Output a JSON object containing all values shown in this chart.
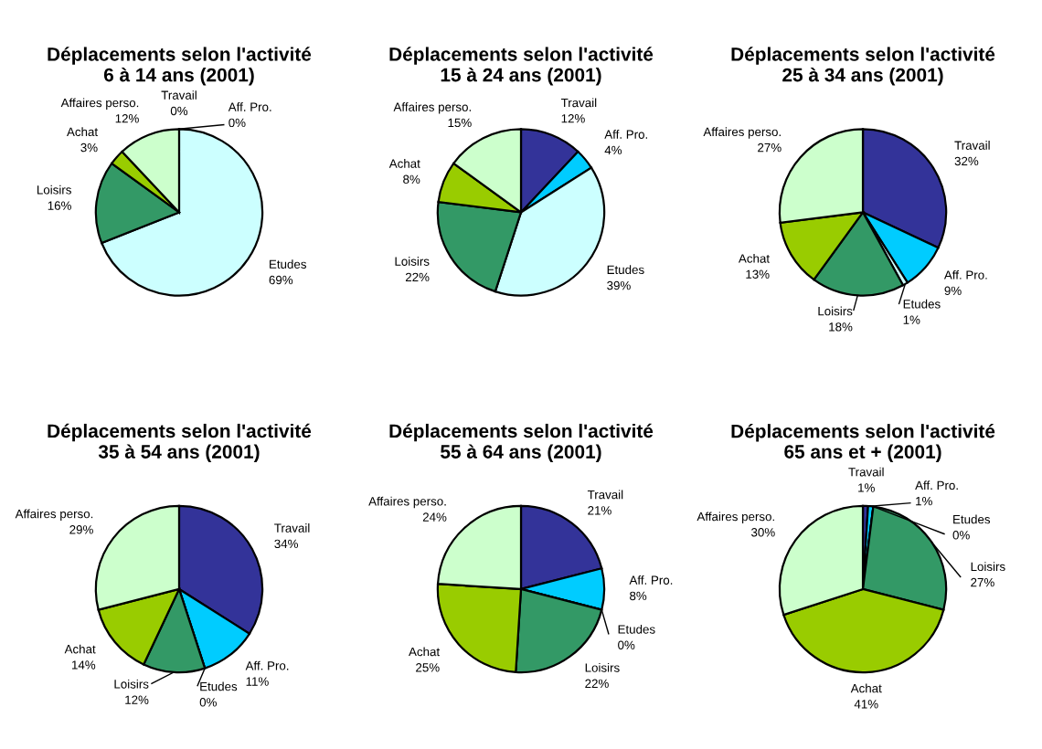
{
  "chart_data": [
    {
      "type": "pie",
      "title": "Déplacements selon l'activité\n6 à 14 ans (2001)",
      "categories": [
        "Travail",
        "Aff. Pro.",
        "Etudes",
        "Loisirs",
        "Achat",
        "Affaires perso."
      ],
      "values": [
        0,
        0,
        69,
        16,
        3,
        12
      ],
      "value_labels": [
        "0%",
        "0%",
        "69%",
        "16%",
        "3%",
        "12%"
      ],
      "colors": [
        "#333399",
        "#00ccff",
        "#ccffff",
        "#339966",
        "#99cc00",
        "#ccffcc"
      ]
    },
    {
      "type": "pie",
      "title": "Déplacements selon l'activité\n15 à 24 ans (2001)",
      "categories": [
        "Travail",
        "Aff. Pro.",
        "Etudes",
        "Loisirs",
        "Achat",
        "Affaires perso."
      ],
      "values": [
        12,
        4,
        39,
        22,
        8,
        15
      ],
      "value_labels": [
        "12%",
        "4%",
        "39%",
        "22%",
        "8%",
        "15%"
      ],
      "colors": [
        "#333399",
        "#00ccff",
        "#ccffff",
        "#339966",
        "#99cc00",
        "#ccffcc"
      ]
    },
    {
      "type": "pie",
      "title": "Déplacements selon l'activité\n25 à 34 ans (2001)",
      "categories": [
        "Travail",
        "Aff. Pro.",
        "Etudes",
        "Loisirs",
        "Achat",
        "Affaires perso."
      ],
      "values": [
        32,
        9,
        1,
        18,
        13,
        27
      ],
      "value_labels": [
        "32%",
        "9%",
        "1%",
        "18%",
        "13%",
        "27%"
      ],
      "colors": [
        "#333399",
        "#00ccff",
        "#ccffff",
        "#339966",
        "#99cc00",
        "#ccffcc"
      ]
    },
    {
      "type": "pie",
      "title": "Déplacements selon l'activité\n35 à 54 ans (2001)",
      "categories": [
        "Travail",
        "Aff. Pro.",
        "Etudes",
        "Loisirs",
        "Achat",
        "Affaires perso."
      ],
      "values": [
        34,
        11,
        0,
        12,
        14,
        29
      ],
      "value_labels": [
        "34%",
        "11%",
        "0%",
        "12%",
        "14%",
        "29%"
      ],
      "colors": [
        "#333399",
        "#00ccff",
        "#ccffff",
        "#339966",
        "#99cc00",
        "#ccffcc"
      ]
    },
    {
      "type": "pie",
      "title": "Déplacements selon l'activité\n55 à 64 ans (2001)",
      "categories": [
        "Travail",
        "Aff. Pro.",
        "Etudes",
        "Loisirs",
        "Achat",
        "Affaires perso."
      ],
      "values": [
        21,
        8,
        0,
        22,
        25,
        24
      ],
      "value_labels": [
        "21%",
        "8%",
        "0%",
        "22%",
        "25%",
        "24%"
      ],
      "colors": [
        "#333399",
        "#00ccff",
        "#ccffff",
        "#339966",
        "#99cc00",
        "#ccffcc"
      ]
    },
    {
      "type": "pie",
      "title": "Déplacements selon l'activité\n65 ans et + (2001)",
      "categories": [
        "Travail",
        "Aff. Pro.",
        "Etudes",
        "Loisirs",
        "Achat",
        "Affaires perso."
      ],
      "values": [
        1,
        1,
        0,
        27,
        41,
        30
      ],
      "value_labels": [
        "1%",
        "1%",
        "0%",
        "27%",
        "41%",
        "30%"
      ],
      "colors": [
        "#333399",
        "#00ccff",
        "#ccffff",
        "#339966",
        "#99cc00",
        "#ccffcc"
      ]
    }
  ]
}
